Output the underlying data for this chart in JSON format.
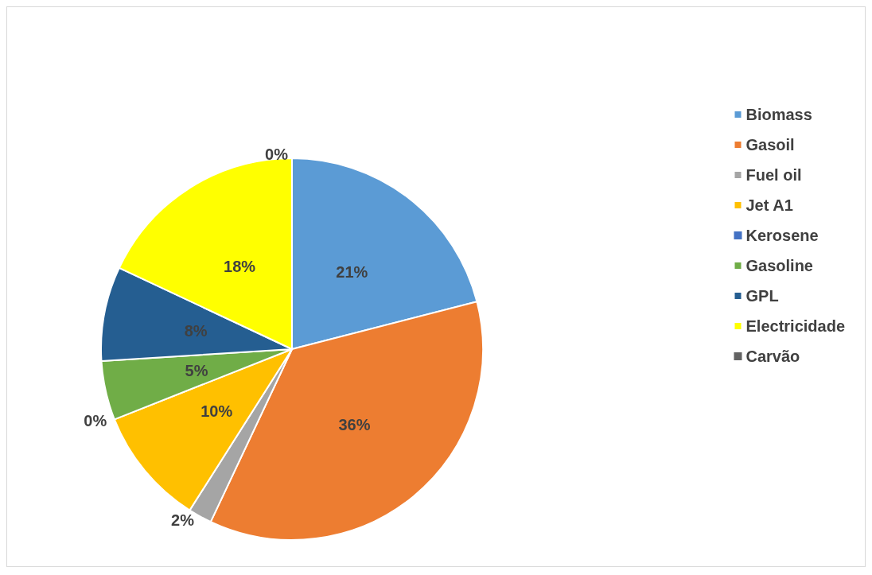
{
  "chart_data": {
    "type": "pie",
    "categories": [
      "Biomass",
      "Gasoil",
      "Fuel oil",
      "Jet A1",
      "Kerosene",
      "Gasoline",
      "GPL",
      "Electricidade",
      "Carvão"
    ],
    "values": [
      21,
      36,
      2,
      10,
      0,
      5,
      8,
      18,
      0
    ],
    "colors": [
      "#5b9bd5",
      "#ed7d31",
      "#a5a5a5",
      "#ffc000",
      "#4472c4",
      "#70ad47",
      "#255e91",
      "#ffff00",
      "#636363"
    ],
    "value_labels": [
      "21%",
      "36%",
      "2%",
      "10%",
      "0%",
      "5%",
      "8%",
      "18%",
      "0%"
    ],
    "legend": "right"
  }
}
